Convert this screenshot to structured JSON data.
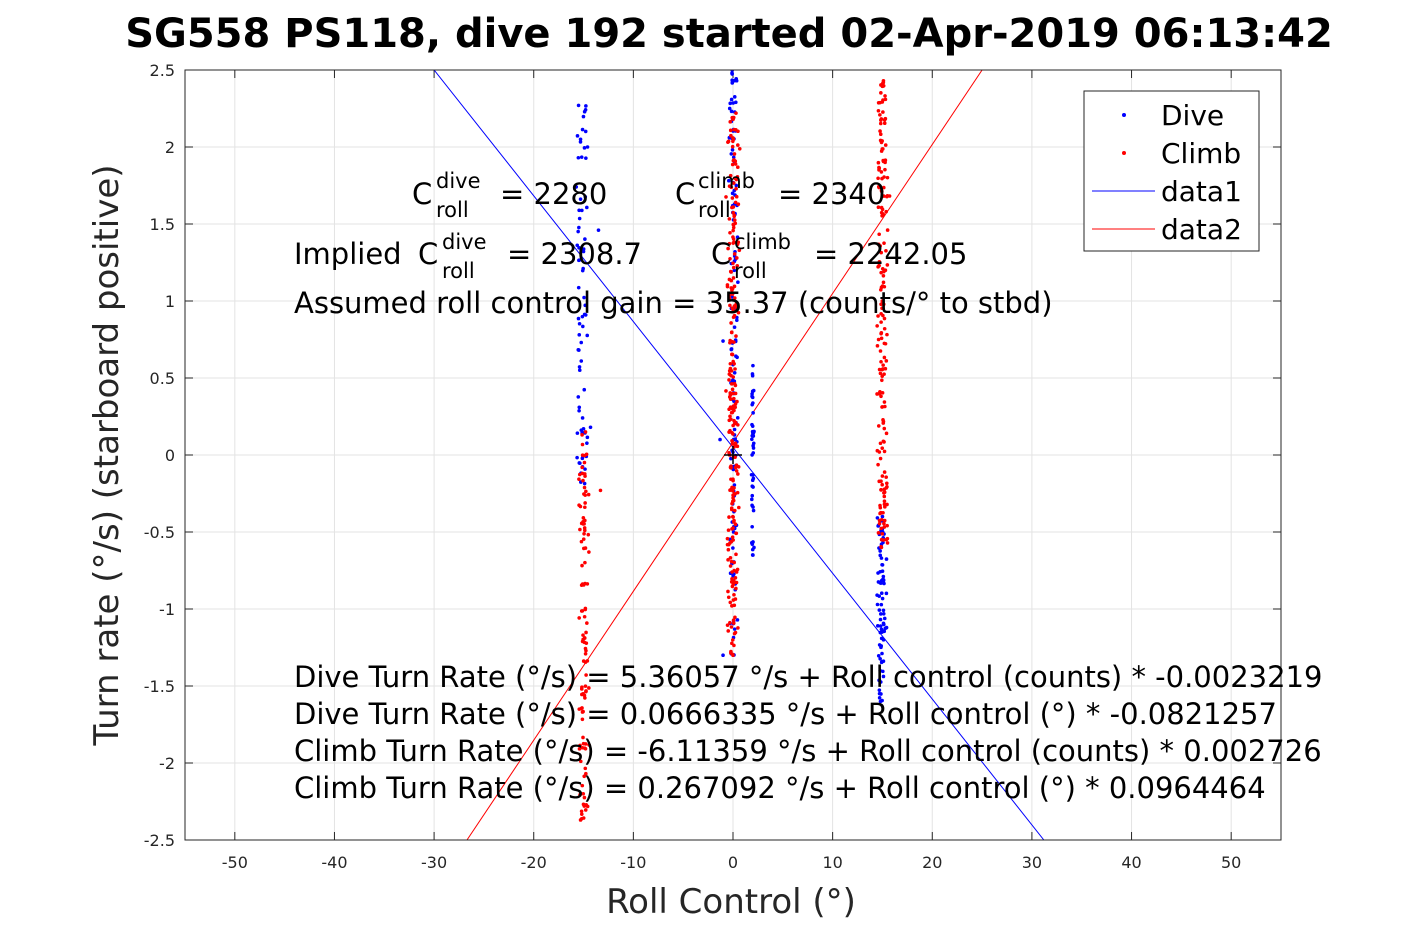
{
  "chart_data": {
    "type": "scatter",
    "title": "SG558 PS118, dive 192 started 02-Apr-2019 06:13:42",
    "xlabel": "Roll Control (°)",
    "ylabel": "Turn rate (°/s) (starboard positive)",
    "xlim": [
      -55,
      55
    ],
    "ylim": [
      -2.5,
      2.5
    ],
    "xticks": [
      "-50",
      "-40",
      "-30",
      "-20",
      "-10",
      "0",
      "10",
      "20",
      "30",
      "40",
      "50"
    ],
    "yticks": [
      "2.5",
      "2",
      "1.5",
      "1",
      "0.5",
      "0",
      "-0.5",
      "-1",
      "-1.5",
      "-2",
      "-2.5"
    ],
    "grid": true,
    "legend_placement": "top-right",
    "colors": {
      "dive": "#0000ff",
      "climb": "#ff0000",
      "text": "#262626"
    },
    "series": [
      {
        "name": "Dive",
        "kind": "points",
        "color": "#0000ff",
        "clusters": [
          {
            "x_center": -15.2,
            "x_spread": 0.8,
            "y_min": -0.2,
            "y_max": 2.27,
            "count": 70,
            "points": [
              [
                -15.5,
                2.27
              ],
              [
                -15.3,
                2.05
              ],
              [
                -14.6,
                2.0
              ],
              [
                -13.5,
                1.46
              ],
              [
                -14.3,
                0.18
              ],
              [
                -15.0,
                0.17
              ]
            ]
          },
          {
            "x_center": 0.1,
            "x_spread": 0.6,
            "y_min": -1.3,
            "y_max": 2.5,
            "count": 120,
            "points": [
              [
                -0.1,
                2.48
              ],
              [
                -1.0,
                0.74
              ],
              [
                -1.3,
                0.1
              ],
              [
                -1.0,
                -1.3
              ]
            ]
          },
          {
            "x_center": 2.0,
            "x_spread": 0.2,
            "y_min": -0.65,
            "y_max": 0.58,
            "count": 45,
            "points": [
              [
                2.0,
                0.58
              ],
              [
                2.0,
                -0.65
              ]
            ]
          },
          {
            "x_center": 14.9,
            "x_spread": 0.6,
            "y_min": -1.6,
            "y_max": -0.4,
            "count": 80,
            "points": [
              [
                15.0,
                -0.4
              ],
              [
                14.9,
                -0.58
              ],
              [
                14.8,
                -1.6
              ]
            ]
          }
        ]
      },
      {
        "name": "Climb",
        "kind": "points",
        "color": "#ff0000",
        "clusters": [
          {
            "x_center": -15.0,
            "x_spread": 0.8,
            "y_min": -2.37,
            "y_max": 0.15,
            "count": 110,
            "points": [
              [
                -13.3,
                -0.23
              ],
              [
                -15.3,
                -2.37
              ],
              [
                -14.8,
                0.15
              ]
            ]
          },
          {
            "x_center": 0.0,
            "x_spread": 0.8,
            "y_min": -1.3,
            "y_max": 2.2,
            "count": 250,
            "points": [
              [
                0.3,
                2.22
              ],
              [
                0.0,
                -1.3
              ]
            ]
          },
          {
            "x_center": 15.0,
            "x_spread": 0.8,
            "y_min": -0.6,
            "y_max": 2.43,
            "count": 180,
            "points": [
              [
                15.1,
                2.43
              ],
              [
                15.2,
                -0.3
              ],
              [
                14.9,
                -0.6
              ]
            ]
          }
        ]
      },
      {
        "name": "data1",
        "kind": "line",
        "color": "#0000ff",
        "x": [
          -30.0,
          31.2
        ],
        "y": [
          2.5,
          -2.5
        ]
      },
      {
        "name": "data2",
        "kind": "line",
        "color": "#ff0000",
        "x": [
          -26.7,
          25.0
        ],
        "y": [
          -2.5,
          2.5
        ]
      }
    ],
    "marker": {
      "type": "plus",
      "x": 0.0,
      "y": 0.0,
      "color": "#000000"
    },
    "annotations": {
      "c_roll_dive": {
        "base": "C",
        "sup": "dive",
        "sub": "roll",
        "value": "= 2280"
      },
      "c_roll_climb": {
        "base": "C",
        "sup": "climb",
        "sub": "roll",
        "value": "= 2340"
      },
      "implied_prefix": "Implied",
      "implied_dive": {
        "base": "C",
        "sup": "dive",
        "sub": "roll",
        "value": "= 2308.7"
      },
      "implied_climb": {
        "base": "C",
        "sup": "climb",
        "sub": "roll",
        "value": "= 2242.05"
      },
      "gain": "Assumed roll control gain = 35.37 (counts/° to stbd)",
      "equations": [
        "Dive Turn Rate (°/s) = 5.36057 °/s + Roll control (counts) * -0.0023219",
        "Dive Turn Rate (°/s) = 0.0666335 °/s + Roll control (°) * -0.0821257",
        "Climb Turn Rate (°/s) = -6.11359 °/s + Roll control (counts) * 0.002726",
        "Climb Turn Rate (°/s) = 0.267092 °/s + Roll control (°) * 0.0964464"
      ]
    },
    "legend": [
      "Dive",
      "Climb",
      "data1",
      "data2"
    ]
  }
}
